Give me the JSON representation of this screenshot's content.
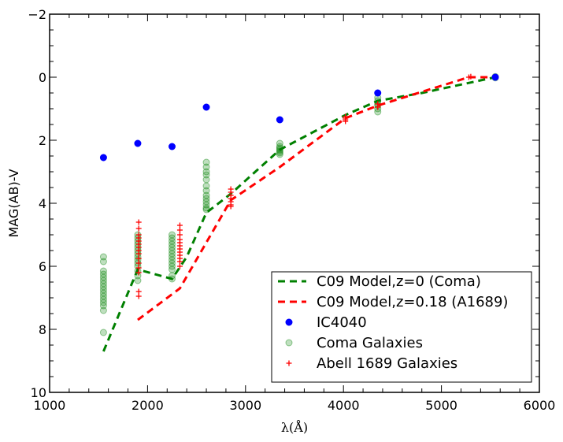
{
  "chart_data": {
    "type": "scatter",
    "title": "",
    "xlabel": "λ(Å)",
    "ylabel": "MAG(AB)-V",
    "xlim": [
      1000,
      6000
    ],
    "ylim": [
      10,
      -2
    ],
    "y_inverted": true,
    "xticks": [
      1000,
      2000,
      3000,
      4000,
      5000,
      6000
    ],
    "xtick_labels": [
      "1000",
      "2000",
      "3000",
      "4000",
      "5000",
      "6000"
    ],
    "yticks": [
      -2,
      0,
      2,
      4,
      6,
      8,
      10
    ],
    "ytick_labels": [
      "−2",
      "0",
      "2",
      "4",
      "6",
      "8",
      "10"
    ],
    "legend_position": "lower-right",
    "series": [
      {
        "name": "C09 Model,z=0 (Coma)",
        "kind": "line",
        "style": "dashed",
        "color": "#008000",
        "x": [
          1550,
          1900,
          2250,
          2400,
          2600,
          2850,
          3350,
          4020,
          4350,
          4800,
          5550
        ],
        "y": [
          8.7,
          6.1,
          6.4,
          5.7,
          4.3,
          3.7,
          2.3,
          1.2,
          0.75,
          0.5,
          0.0
        ]
      },
      {
        "name": "C09 Model,z=0.18 (A1689)",
        "kind": "line",
        "style": "dashed",
        "color": "#ff0000",
        "x": [
          1900,
          2330,
          2850,
          3350,
          4020,
          4350,
          5280,
          5550
        ],
        "y": [
          7.7,
          6.7,
          3.9,
          2.85,
          1.3,
          0.9,
          0.0,
          0.0
        ]
      },
      {
        "name": "IC4040",
        "kind": "points",
        "marker": "circle",
        "color": "#0000ff",
        "x": [
          1550,
          1900,
          2250,
          2600,
          3350,
          4350,
          5550
        ],
        "y": [
          2.55,
          2.1,
          2.2,
          0.95,
          1.35,
          0.5,
          0.0
        ]
      },
      {
        "name": "Coma Galaxies",
        "kind": "points",
        "marker": "circle",
        "color": "#008000",
        "opacity": 0.25,
        "x": [
          1550,
          1550,
          1550,
          1550,
          1550,
          1550,
          1550,
          1550,
          1550,
          1550,
          1550,
          1550,
          1550,
          1550,
          1550,
          1550,
          1900,
          1900,
          1900,
          1900,
          1900,
          1900,
          1900,
          1900,
          1900,
          1900,
          1900,
          1900,
          1900,
          1900,
          2250,
          2250,
          2250,
          2250,
          2250,
          2250,
          2250,
          2250,
          2250,
          2250,
          2250,
          2250,
          2250,
          2250,
          2600,
          2600,
          2600,
          2600,
          2600,
          2600,
          2600,
          2600,
          2600,
          2600,
          2600,
          2600,
          2600,
          3350,
          3350,
          3350,
          3350,
          3350,
          3350,
          3350,
          4350,
          4350,
          4350,
          4350,
          4350,
          4350,
          5550,
          5550
        ],
        "y": [
          5.7,
          5.85,
          6.15,
          6.25,
          6.35,
          6.45,
          6.55,
          6.65,
          6.75,
          6.85,
          6.95,
          7.05,
          7.15,
          7.25,
          7.4,
          8.1,
          5.0,
          5.1,
          5.2,
          5.3,
          5.4,
          5.5,
          5.6,
          5.7,
          5.8,
          5.9,
          6.0,
          6.15,
          6.3,
          6.45,
          5.0,
          5.1,
          5.2,
          5.3,
          5.4,
          5.5,
          5.6,
          5.7,
          5.8,
          5.9,
          6.0,
          6.1,
          6.3,
          6.4,
          2.7,
          2.85,
          3.0,
          3.1,
          3.25,
          3.45,
          3.6,
          3.75,
          3.85,
          3.95,
          4.05,
          4.15,
          4.2,
          2.1,
          2.2,
          2.25,
          2.3,
          2.35,
          2.4,
          2.45,
          0.65,
          0.75,
          0.85,
          0.9,
          1.0,
          1.1,
          -0.02,
          0.02
        ]
      },
      {
        "name": "Abell 1689 Galaxies",
        "kind": "points",
        "marker": "plus",
        "color": "#ff0000",
        "x": [
          1910,
          1910,
          1910,
          1910,
          1910,
          1910,
          1910,
          1910,
          1910,
          1910,
          1910,
          1910,
          1910,
          1910,
          1910,
          2330,
          2330,
          2330,
          2330,
          2330,
          2330,
          2330,
          2330,
          2330,
          2330,
          2330,
          2330,
          2850,
          2850,
          2850,
          2850,
          2850,
          2850,
          2850,
          4020,
          4020,
          4020,
          4020,
          4350,
          4350,
          5280,
          5300
        ],
        "y": [
          4.6,
          4.8,
          5.0,
          5.1,
          5.2,
          5.3,
          5.4,
          5.5,
          5.6,
          5.75,
          5.9,
          6.05,
          6.2,
          6.8,
          6.95,
          4.7,
          4.85,
          5.0,
          5.15,
          5.25,
          5.35,
          5.45,
          5.55,
          5.65,
          5.75,
          5.85,
          6.0,
          3.55,
          3.65,
          3.75,
          3.85,
          3.95,
          4.05,
          4.1,
          1.25,
          1.3,
          1.35,
          1.4,
          0.85,
          0.95,
          0.0,
          -0.02
        ]
      }
    ]
  }
}
